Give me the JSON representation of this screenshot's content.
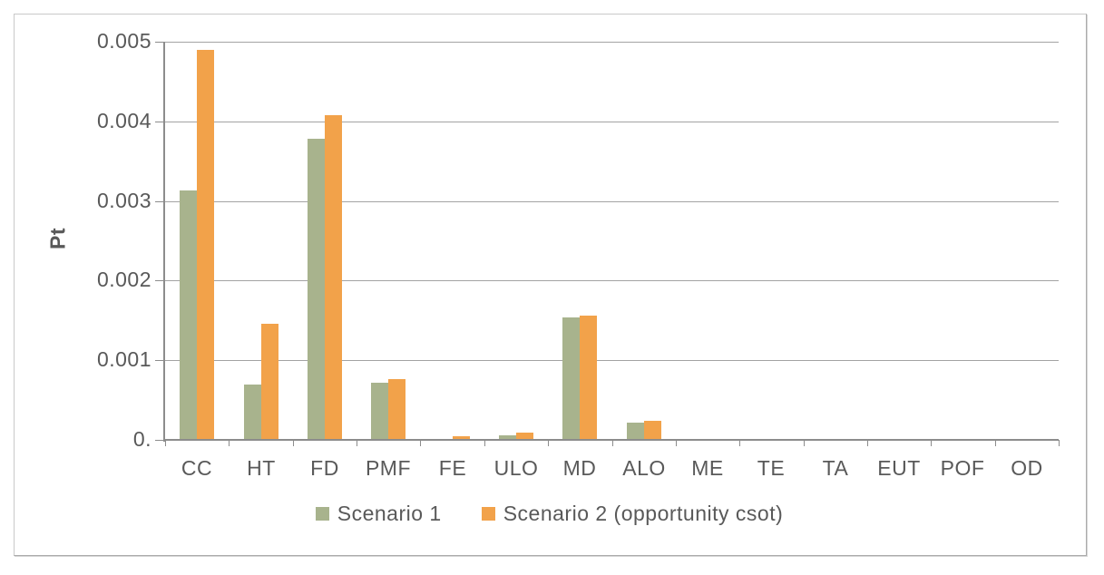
{
  "chart_data": {
    "type": "bar",
    "title": "",
    "xlabel": "",
    "ylabel": "Pt",
    "ylim": [
      0,
      0.005
    ],
    "grid": true,
    "legend_position": "bottom",
    "categories": [
      "CC",
      "HT",
      "FD",
      "PMF",
      "FE",
      "ULO",
      "MD",
      "ALO",
      "ME",
      "TE",
      "TA",
      "EUT",
      "POF",
      "OD"
    ],
    "series": [
      {
        "name": "Scenario 1",
        "color": "#a8b38d",
        "values": [
          0.00313,
          0.00069,
          0.00378,
          0.00072,
          0,
          6e-05,
          0.00154,
          0.00022,
          0,
          0,
          0,
          0,
          0,
          0
        ]
      },
      {
        "name": "Scenario 2 (opportunity csot)",
        "color": "#f2a24a",
        "values": [
          0.0049,
          0.00146,
          0.00408,
          0.00076,
          4e-05,
          9e-05,
          0.00156,
          0.00024,
          0,
          0,
          0,
          0,
          0,
          0
        ]
      }
    ],
    "yticks": [
      {
        "value": 0.005,
        "label": "0.005"
      },
      {
        "value": 0.004,
        "label": "0.004"
      },
      {
        "value": 0.003,
        "label": "0.003"
      },
      {
        "value": 0.002,
        "label": "0.002"
      },
      {
        "value": 0.001,
        "label": "0.001"
      },
      {
        "value": 0,
        "label": "0."
      }
    ]
  },
  "colors": {
    "text": "#595959",
    "gridline": "#a3a3a3",
    "axis": "#8c8c8c",
    "frame_border": "#c9c9c9",
    "series1": "#a8b38d",
    "series2": "#f2a24a"
  }
}
